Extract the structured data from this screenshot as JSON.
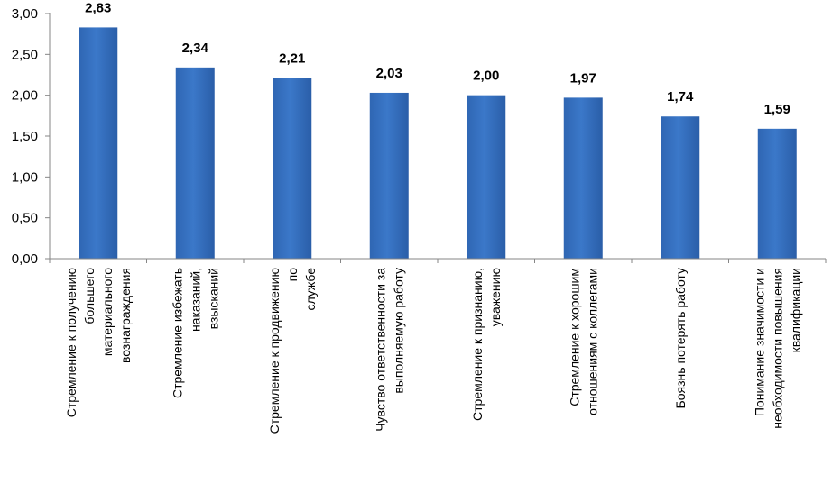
{
  "chart_data": {
    "type": "bar",
    "title": "",
    "xlabel": "",
    "ylabel": "",
    "ylim": [
      0,
      3
    ],
    "yticks": [
      "0,00",
      "0,50",
      "1,00",
      "1,50",
      "2,00",
      "2,50",
      "3,00"
    ],
    "grid": false,
    "legend": "none",
    "bar_color": "#3b78c9",
    "categories": [
      [
        "Стремление к получению",
        "большего",
        "материального",
        "вознаграждения"
      ],
      [
        "Стремление избежать",
        "наказаний,",
        "взысканий"
      ],
      [
        "Стремление к продвижению",
        "по",
        "службе"
      ],
      [
        "Чувство ответственности за",
        "выполняемую работу"
      ],
      [
        "Стремление к признанию,",
        "уважению"
      ],
      [
        "Стремление к хорошим",
        "отношениям с коллегами"
      ],
      [
        "Боязнь потерять работу"
      ],
      [
        "Понимание значимости и",
        "необходимости повышения",
        "квалификации"
      ]
    ],
    "values": [
      2.83,
      2.34,
      2.21,
      2.03,
      2.0,
      1.97,
      1.74,
      1.59
    ],
    "value_labels": [
      "2,83",
      "2,34",
      "2,21",
      "2,03",
      "2,00",
      "1,97",
      "1,74",
      "1,59"
    ]
  }
}
